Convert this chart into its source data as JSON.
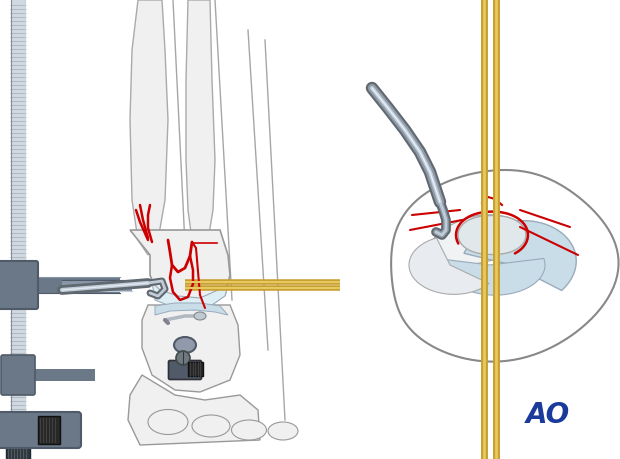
{
  "bg_color": "#ffffff",
  "ao_text": "AO",
  "ao_color": "#1a3a9c",
  "ao_fontsize": 20,
  "figure_width": 6.2,
  "figure_height": 4.59,
  "bone_light": "#f0f0f0",
  "bone_mid": "#e0e4e8",
  "bone_dark": "#c8cdd4",
  "bone_edge": "#999999",
  "cartilage": "#c8dde8",
  "cartilage2": "#ddeef5",
  "fracture_red": "#cc0000",
  "wire_gold1": "#c8a030",
  "wire_gold2": "#e8c860",
  "metal_dark": "#606870",
  "metal_mid": "#909aa8",
  "metal_light": "#c0ccd8",
  "fix_dark": "#505a68",
  "fix_mid": "#6a7888",
  "fix_light": "#8898a8",
  "screw_dark": "#484848",
  "screw_mid": "#888888",
  "screw_light": "#c0c0c0",
  "tissue": "#d8cfc8"
}
